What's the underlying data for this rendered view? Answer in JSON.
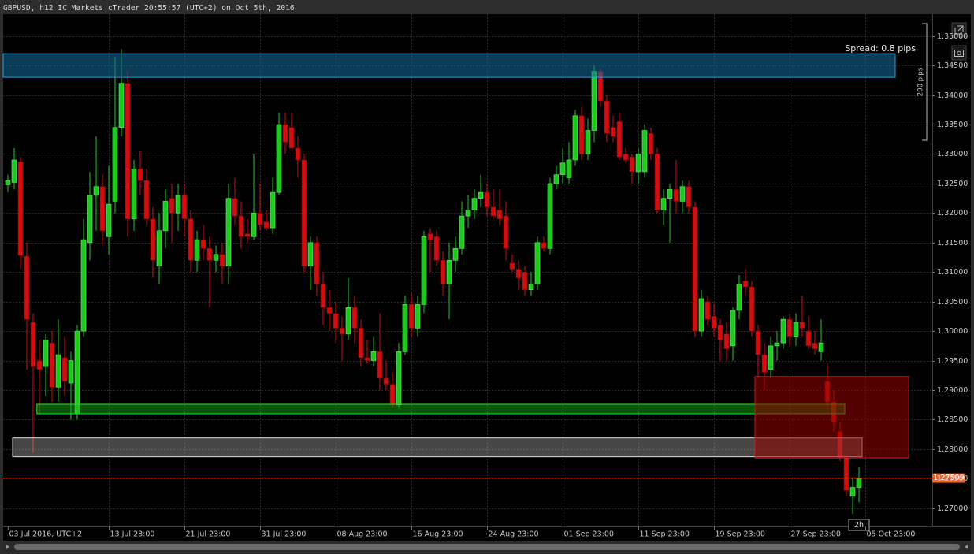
{
  "chart_data": {
    "type": "candlestick",
    "title": "GBPUSD, h12 IC Markets cTrader 20:55:57 (UTC+2) on Oct 5th, 2016",
    "spread": "Spread: 0.8 pips",
    "scale_label": "200 pips",
    "countdown": "2h",
    "up_color": "#1ec81e",
    "down_color": "#d01010",
    "grid": true,
    "ylim": [
      1.2669,
      1.3537
    ],
    "yticks": [
      {
        "value": 1.27,
        "label": "1.27000"
      },
      {
        "value": 1.275,
        "label": "1.27500"
      },
      {
        "value": 1.28,
        "label": "1.28000"
      },
      {
        "value": 1.285,
        "label": "1.28500"
      },
      {
        "value": 1.29,
        "label": "1.29000"
      },
      {
        "value": 1.295,
        "label": "1.29500"
      },
      {
        "value": 1.3,
        "label": "1.30000"
      },
      {
        "value": 1.305,
        "label": "1.30500"
      },
      {
        "value": 1.31,
        "label": "1.31000"
      },
      {
        "value": 1.315,
        "label": "1.31500"
      },
      {
        "value": 1.32,
        "label": "1.32000"
      },
      {
        "value": 1.325,
        "label": "1.32500"
      },
      {
        "value": 1.33,
        "label": "1.33000"
      },
      {
        "value": 1.335,
        "label": "1.33500"
      },
      {
        "value": 1.34,
        "label": "1.34000"
      },
      {
        "value": 1.345,
        "label": "1.34500"
      },
      {
        "value": 1.35,
        "label": "1.35000"
      }
    ],
    "current_price": 1.27509,
    "current_price_color": "#e8602c",
    "zones": [
      {
        "top": 1.347,
        "bottom": 1.343,
        "x": [
          -0.75,
          140.75
        ],
        "fill": "rgba(20,110,160,0.55)",
        "stroke": "#2a9fd6"
      },
      {
        "top": 1.2876,
        "bottom": 1.286,
        "x": [
          4.6,
          132.75
        ],
        "fill": "rgba(20,190,20,0.45)",
        "stroke": "#33dd33"
      },
      {
        "top": 1.2819,
        "bottom": 1.2787,
        "x": [
          0.75,
          135.5
        ],
        "fill": "rgba(200,200,200,0.35)",
        "stroke": "#e0e0e0"
      },
      {
        "top": 1.2923,
        "bottom": 1.2785,
        "x": [
          118.5,
          142.9
        ],
        "fill": "rgba(150,0,0,0.55)",
        "stroke": "#c02020"
      }
    ],
    "categories": [
      "03 Jul 2016, UTC+2",
      null,
      null,
      null,
      null,
      null,
      null,
      null,
      null,
      null,
      null,
      null,
      null,
      null,
      null,
      null,
      "13 Jul 23:00",
      null,
      null,
      null,
      null,
      null,
      null,
      null,
      null,
      null,
      null,
      null,
      "21 Jul 23:00",
      null,
      null,
      null,
      null,
      null,
      null,
      null,
      null,
      null,
      null,
      null,
      "31 Jul 23:00",
      null,
      null,
      null,
      null,
      null,
      null,
      null,
      null,
      null,
      null,
      null,
      "08 Aug 23:00",
      null,
      null,
      null,
      null,
      null,
      null,
      null,
      null,
      null,
      null,
      null,
      "16 Aug 23:00",
      null,
      null,
      null,
      null,
      null,
      null,
      null,
      null,
      null,
      null,
      null,
      "24 Aug 23:00",
      null,
      null,
      null,
      null,
      null,
      null,
      null,
      null,
      null,
      null,
      null,
      "01 Sep 23:00",
      null,
      null,
      null,
      null,
      null,
      null,
      null,
      null,
      null,
      null,
      null,
      "11 Sep 23:00",
      null,
      null,
      null,
      null,
      null,
      null,
      null,
      null,
      null,
      null,
      null,
      "19 Sep 23:00",
      null,
      null,
      null,
      null,
      null,
      null,
      null,
      null,
      null,
      null,
      null,
      "27 Sep 23:00",
      null,
      null,
      null,
      null,
      null,
      null,
      null,
      null,
      null,
      null,
      null,
      "05 Oct 23:00"
    ],
    "open": [
      1.3248,
      1.3252,
      1.3287,
      1.3127,
      1.3015,
      1.295,
      1.294,
      1.298,
      1.2905,
      1.2955,
      1.2912,
      1.286,
      1.3,
      1.315,
      1.323,
      1.3245,
      1.316,
      1.322,
      1.3345,
      1.342,
      1.319,
      1.3275,
      1.3255,
      1.319,
      1.311,
      1.317,
      1.3225,
      1.32,
      1.323,
      1.319,
      1.312,
      1.3155,
      1.314,
      1.312,
      1.313,
      1.311,
      1.3225,
      1.3195,
      1.3165,
      1.316,
      1.32,
      1.3185,
      1.3175,
      1.3235,
      1.335,
      1.3345,
      1.331,
      1.329,
      1.311,
      1.315,
      1.308,
      1.304,
      1.303,
      1.3005,
      1.2995,
      1.304,
      1.3005,
      1.2955,
      1.295,
      1.2965,
      1.292,
      1.291,
      1.2875,
      1.2965,
      1.3045,
      1.3005,
      1.3045,
      1.3165,
      1.316,
      1.312,
      1.308,
      1.312,
      1.314,
      1.3195,
      1.3205,
      1.3225,
      1.3235,
      1.321,
      1.3205,
      1.3195,
      1.3115,
      1.3105,
      1.31,
      1.307,
      1.308,
      1.315,
      1.314,
      1.325,
      1.3265,
      1.326,
      1.329,
      1.3365,
      1.33,
      1.334,
      1.344,
      1.339,
      1.3345,
      1.3355,
      1.33,
      1.3295,
      1.327,
      1.327,
      1.3335,
      1.33,
      1.3205,
      1.3225,
      1.324,
      1.322,
      1.3245,
      1.321,
      1.3,
      1.305,
      1.3025,
      1.301,
      1.2995,
      1.2975,
      1.3035,
      1.3085,
      1.3075,
      1.3,
      1.296,
      1.2935,
      1.2975,
      1.298,
      1.302,
      1.299,
      1.3015,
      1.3,
      1.298,
      1.2965,
      1.2915,
      1.288,
      1.283,
      1.2785,
      1.272,
      1.2735,
      null
    ],
    "high": [
      1.3265,
      1.331,
      1.3295,
      1.315,
      1.303,
      1.2985,
      1.2995,
      1.3,
      1.302,
      1.299,
      1.2965,
      1.301,
      1.319,
      1.327,
      1.333,
      1.3265,
      1.328,
      1.3465,
      1.3478,
      1.344,
      1.329,
      1.3305,
      1.3275,
      1.321,
      1.32,
      1.324,
      1.325,
      1.325,
      1.325,
      1.3205,
      1.317,
      1.318,
      1.316,
      1.3145,
      1.315,
      1.325,
      1.326,
      1.322,
      1.319,
      1.33,
      1.325,
      1.3205,
      1.326,
      1.337,
      1.337,
      1.337,
      1.333,
      1.33,
      1.316,
      1.316,
      1.31,
      1.307,
      1.305,
      1.3025,
      1.309,
      1.306,
      1.302,
      1.2985,
      1.299,
      1.303,
      1.295,
      1.293,
      1.298,
      1.306,
      1.3065,
      1.306,
      1.317,
      1.3175,
      1.317,
      1.3135,
      1.315,
      1.316,
      1.322,
      1.323,
      1.324,
      1.3265,
      1.325,
      1.324,
      1.324,
      1.322,
      1.313,
      1.312,
      1.311,
      1.31,
      1.316,
      1.316,
      1.326,
      1.328,
      1.331,
      1.332,
      1.3375,
      1.338,
      1.336,
      1.345,
      1.3445,
      1.34,
      1.3365,
      1.337,
      1.331,
      1.33,
      1.331,
      1.335,
      1.3345,
      1.331,
      1.324,
      1.325,
      1.329,
      1.3255,
      1.3255,
      1.322,
      1.307,
      1.306,
      1.3045,
      1.302,
      1.3015,
      1.304,
      1.3095,
      1.3105,
      1.3085,
      1.301,
      1.298,
      1.299,
      1.3,
      1.3025,
      1.303,
      1.303,
      1.306,
      1.3025,
      1.3,
      1.302,
      1.2945,
      1.29,
      1.2845,
      1.279,
      1.275,
      1.277,
      null
    ],
    "low": [
      1.3235,
      1.324,
      1.3105,
      1.2935,
      1.2794,
      1.286,
      1.289,
      1.288,
      1.288,
      1.289,
      1.285,
      1.285,
      1.299,
      1.312,
      1.317,
      1.3145,
      1.313,
      1.32,
      1.333,
      1.316,
      1.317,
      1.323,
      1.318,
      1.309,
      1.308,
      1.314,
      1.315,
      1.317,
      1.316,
      1.31,
      1.31,
      1.312,
      1.304,
      1.31,
      1.308,
      1.308,
      1.318,
      1.314,
      1.315,
      1.3155,
      1.317,
      1.317,
      1.3165,
      1.323,
      1.33,
      1.331,
      1.326,
      1.31,
      1.307,
      1.306,
      1.301,
      1.3,
      1.298,
      1.295,
      1.2985,
      1.298,
      1.294,
      1.2945,
      1.294,
      1.29,
      1.29,
      1.287,
      1.287,
      1.296,
      1.299,
      1.299,
      1.303,
      1.31,
      1.311,
      1.306,
      1.302,
      1.31,
      1.313,
      1.3175,
      1.319,
      1.321,
      1.3195,
      1.319,
      1.318,
      1.312,
      1.31,
      1.307,
      1.306,
      1.306,
      1.307,
      1.3135,
      1.313,
      1.324,
      1.325,
      1.325,
      1.328,
      1.329,
      1.329,
      1.332,
      1.338,
      1.332,
      1.332,
      1.329,
      1.3285,
      1.325,
      1.325,
      1.326,
      1.329,
      1.32,
      1.318,
      1.315,
      1.32,
      1.32,
      1.32,
      1.299,
      1.299,
      1.301,
      1.299,
      1.295,
      1.295,
      1.295,
      1.302,
      1.306,
      1.299,
      1.292,
      1.29,
      1.292,
      1.295,
      1.297,
      1.2975,
      1.2975,
      1.299,
      1.297,
      1.296,
      1.295,
      1.287,
      1.283,
      1.278,
      1.272,
      1.269,
      1.271,
      null
    ],
    "close": [
      1.3255,
      1.329,
      1.3128,
      1.302,
      1.294,
      1.2935,
      1.2985,
      1.2905,
      1.296,
      1.2915,
      1.295,
      1.3,
      1.3155,
      1.323,
      1.3245,
      1.317,
      1.3215,
      1.3345,
      1.342,
      1.319,
      1.3275,
      1.3255,
      1.319,
      1.312,
      1.317,
      1.322,
      1.32,
      1.323,
      1.319,
      1.312,
      1.3155,
      1.314,
      1.312,
      1.313,
      1.311,
      1.3225,
      1.3195,
      1.316,
      1.316,
      1.32,
      1.318,
      1.3175,
      1.3235,
      1.335,
      1.332,
      1.331,
      1.329,
      1.311,
      1.315,
      1.308,
      1.304,
      1.303,
      1.3005,
      1.2995,
      1.304,
      1.3005,
      1.2955,
      1.295,
      1.2965,
      1.292,
      1.291,
      1.2875,
      1.2965,
      1.3045,
      1.3005,
      1.3045,
      1.316,
      1.3155,
      1.312,
      1.308,
      1.312,
      1.314,
      1.3195,
      1.3205,
      1.3225,
      1.3235,
      1.321,
      1.3195,
      1.319,
      1.314,
      1.3105,
      1.309,
      1.307,
      1.308,
      1.315,
      1.314,
      1.325,
      1.3265,
      1.3285,
      1.329,
      1.3365,
      1.33,
      1.334,
      1.344,
      1.339,
      1.3335,
      1.333,
      1.3295,
      1.329,
      1.327,
      1.33,
      1.334,
      1.33,
      1.3205,
      1.3225,
      1.324,
      1.322,
      1.3245,
      1.321,
      1.3,
      1.3055,
      1.302,
      1.3005,
      1.2985,
      1.297,
      1.3035,
      1.308,
      1.3075,
      1.3,
      1.296,
      1.293,
      1.2975,
      1.298,
      1.302,
      1.299,
      1.3015,
      1.3005,
      1.2975,
      1.297,
      1.298,
      1.288,
      1.2845,
      1.2785,
      1.273,
      1.2735,
      1.27509,
      null
    ]
  }
}
